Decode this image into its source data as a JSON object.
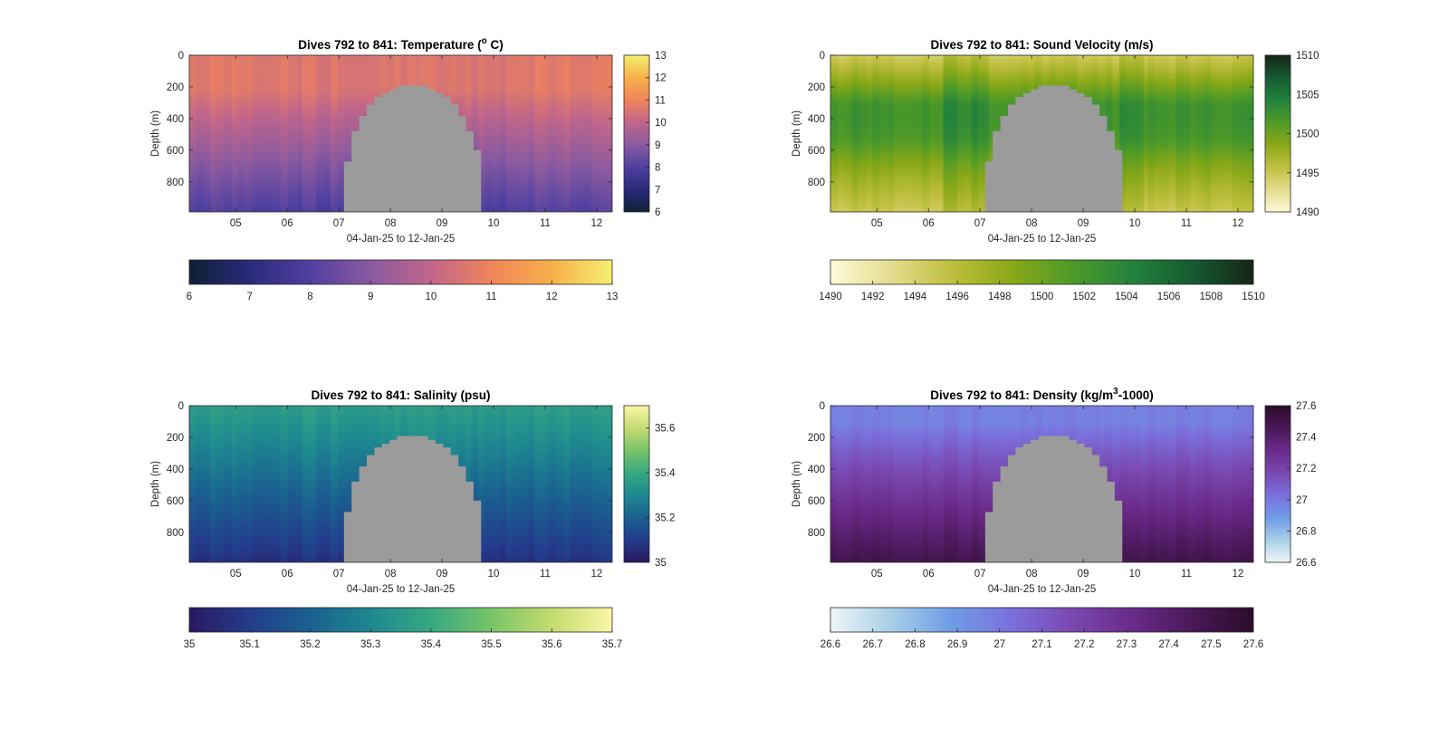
{
  "figure_background": "#ffffff",
  "chart_data": [
    {
      "type": "heatmap",
      "title_prefix": "Dives 792 to 841: Temperature (",
      "title_super": "o",
      "title_suffix": " C)",
      "xlabel": "04-Jan-25 to 12-Jan-25",
      "ylabel": "Depth (m)",
      "xlim": [
        4.1,
        12.3
      ],
      "ylim": [
        990,
        0
      ],
      "xticks": [
        5,
        6,
        7,
        8,
        9,
        10,
        11,
        12
      ],
      "xtick_labels": [
        "05",
        "06",
        "07",
        "08",
        "09",
        "10",
        "11",
        "12"
      ],
      "yticks": [
        0,
        200,
        400,
        600,
        800
      ],
      "ytick_labels": [
        "0",
        "200",
        "400",
        "600",
        "800"
      ],
      "field": "temperature",
      "clim": [
        6,
        13
      ],
      "colormap": [
        "#0d2034",
        "#2a2a7a",
        "#5040a0",
        "#8a5aa0",
        "#c0668a",
        "#f0845a",
        "#f7b04a",
        "#f5f070"
      ],
      "missing_color": "#9b9b9b",
      "gap_x_range": [
        7.1,
        9.75
      ],
      "gap_top_min_depth": 185,
      "right_colorbar": {
        "ticks": [
          6,
          7,
          8,
          9,
          10,
          11,
          12,
          13
        ],
        "labels": [
          "6",
          "7",
          "8",
          "9",
          "10",
          "11",
          "12",
          "13"
        ]
      },
      "bottom_colorbar": {
        "ticks": [
          6,
          7,
          8,
          9,
          10,
          11,
          12,
          13
        ],
        "labels": [
          "6",
          "7",
          "8",
          "9",
          "10",
          "11",
          "12",
          "13"
        ]
      }
    },
    {
      "type": "heatmap",
      "title_prefix": "Dives 792 to 841: Sound Velocity (m/s)",
      "title_super": "",
      "title_suffix": "",
      "xlabel": "04-Jan-25 to 12-Jan-25",
      "ylabel": "Depth (m)",
      "xlim": [
        4.1,
        12.3
      ],
      "ylim": [
        990,
        0
      ],
      "xticks": [
        5,
        6,
        7,
        8,
        9,
        10,
        11,
        12
      ],
      "xtick_labels": [
        "05",
        "06",
        "07",
        "08",
        "09",
        "10",
        "11",
        "12"
      ],
      "yticks": [
        0,
        200,
        400,
        600,
        800
      ],
      "ytick_labels": [
        "0",
        "200",
        "400",
        "600",
        "800"
      ],
      "field": "sound_velocity",
      "clim": [
        1490,
        1510
      ],
      "colormap": [
        "#fefbd8",
        "#e4dc8e",
        "#bfbf3f",
        "#8aa818",
        "#4e9a28",
        "#22823c",
        "#155a30",
        "#152618"
      ],
      "missing_color": "#9b9b9b",
      "gap_x_range": [
        7.1,
        9.75
      ],
      "gap_top_min_depth": 185,
      "right_colorbar": {
        "ticks": [
          1490,
          1495,
          1500,
          1505,
          1510
        ],
        "labels": [
          "1490",
          "1495",
          "1500",
          "1505",
          "1510"
        ]
      },
      "bottom_colorbar": {
        "ticks": [
          1490,
          1492,
          1494,
          1496,
          1498,
          1500,
          1502,
          1504,
          1506,
          1508,
          1510
        ],
        "labels": [
          "1490",
          "1492",
          "1494",
          "1496",
          "1498",
          "1500",
          "1502",
          "1504",
          "1506",
          "1508",
          "1510"
        ]
      }
    },
    {
      "type": "heatmap",
      "title_prefix": "Dives 792 to 841: Salinity (psu)",
      "title_super": "",
      "title_suffix": "",
      "xlabel": "04-Jan-25 to 12-Jan-25",
      "ylabel": "Depth (m)",
      "xlim": [
        4.1,
        12.3
      ],
      "ylim": [
        990,
        0
      ],
      "xticks": [
        5,
        6,
        7,
        8,
        9,
        10,
        11,
        12
      ],
      "xtick_labels": [
        "05",
        "06",
        "07",
        "08",
        "09",
        "10",
        "11",
        "12"
      ],
      "yticks": [
        0,
        200,
        400,
        600,
        800
      ],
      "ytick_labels": [
        "0",
        "200",
        "400",
        "600",
        "800"
      ],
      "field": "salinity",
      "clim": [
        35,
        35.7
      ],
      "colormap": [
        "#2a1860",
        "#233c8c",
        "#1a6090",
        "#1e8890",
        "#37a882",
        "#78c468",
        "#c4dc70",
        "#fcf6a8"
      ],
      "missing_color": "#9b9b9b",
      "gap_x_range": [
        7.1,
        9.75
      ],
      "gap_top_min_depth": 185,
      "right_colorbar": {
        "ticks": [
          35,
          35.2,
          35.4,
          35.6
        ],
        "labels": [
          "35",
          "35.2",
          "35.4",
          "35.6"
        ]
      },
      "bottom_colorbar": {
        "ticks": [
          35,
          35.1,
          35.2,
          35.3,
          35.4,
          35.5,
          35.6,
          35.7
        ],
        "labels": [
          "35",
          "35.1",
          "35.2",
          "35.3",
          "35.4",
          "35.5",
          "35.6",
          "35.7"
        ]
      }
    },
    {
      "type": "heatmap",
      "title_prefix": "Dives 792 to 841: Density (kg/m",
      "title_super": "3",
      "title_suffix": "-1000)",
      "xlabel": "04-Jan-25 to 12-Jan-25",
      "ylabel": "Depth (m)",
      "xlim": [
        4.1,
        12.3
      ],
      "ylim": [
        990,
        0
      ],
      "xticks": [
        5,
        6,
        7,
        8,
        9,
        10,
        11,
        12
      ],
      "xtick_labels": [
        "05",
        "06",
        "07",
        "08",
        "09",
        "10",
        "11",
        "12"
      ],
      "yticks": [
        0,
        200,
        400,
        600,
        800
      ],
      "ytick_labels": [
        "0",
        "200",
        "400",
        "600",
        "800"
      ],
      "field": "density",
      "clim": [
        26.6,
        27.6
      ],
      "colormap": [
        "#eef6f6",
        "#a8cfe8",
        "#6f9ce6",
        "#7a70dc",
        "#7a48b0",
        "#6a2a8a",
        "#4a1858",
        "#2a0c2a"
      ],
      "missing_color": "#9b9b9b",
      "gap_x_range": [
        7.1,
        9.75
      ],
      "gap_top_min_depth": 185,
      "right_colorbar": {
        "ticks": [
          26.6,
          26.8,
          27,
          27.2,
          27.4,
          27.6
        ],
        "labels": [
          "26.6",
          "26.8",
          "27",
          "27.2",
          "27.4",
          "27.6"
        ]
      },
      "bottom_colorbar": {
        "ticks": [
          26.6,
          26.7,
          26.8,
          26.9,
          27,
          27.1,
          27.2,
          27.3,
          27.4,
          27.5,
          27.6
        ],
        "labels": [
          "26.6",
          "26.7",
          "26.8",
          "26.9",
          "27",
          "27.1",
          "27.2",
          "27.3",
          "27.4",
          "27.5",
          "27.6"
        ]
      }
    }
  ]
}
